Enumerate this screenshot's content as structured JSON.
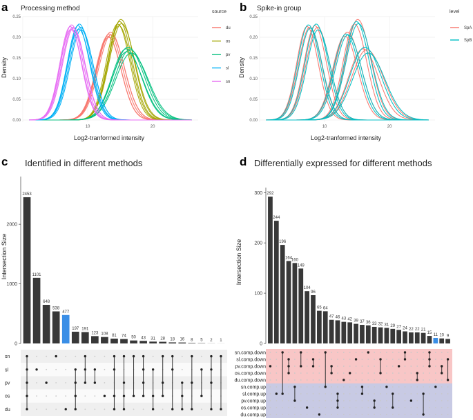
{
  "panel_labels": [
    "a",
    "b",
    "c",
    "d"
  ],
  "chart_data": [
    {
      "id": "a",
      "type": "line",
      "title": "Processing method",
      "xlabel": "Log2-tranformed intensity",
      "ylabel": "Density",
      "xlim": [
        0,
        27
      ],
      "ylim": [
        -0.005,
        0.25
      ],
      "xticks": [
        10,
        20
      ],
      "yticks": [
        0.0,
        0.05,
        0.1,
        0.15,
        0.2,
        0.25
      ],
      "ytick_labels": [
        "0.00",
        "0.05",
        "0.10",
        "0.15",
        "0.20",
        "0.25"
      ],
      "legend_title": "source",
      "legend_position": "right",
      "series": [
        {
          "name": "du",
          "color": "#F8766D",
          "curves": [
            [
              13.1,
              1.85,
              0.203
            ],
            [
              13.3,
              1.9,
              0.208
            ],
            [
              13.5,
              1.95,
              0.212
            ],
            [
              13.2,
              1.8,
              0.2
            ],
            [
              13.6,
              1.92,
              0.206
            ]
          ]
        },
        {
          "name": "os",
          "color": "#A3A500",
          "curves": [
            [
              14.6,
              1.75,
              0.232
            ],
            [
              14.9,
              1.8,
              0.238
            ],
            [
              15.1,
              1.85,
              0.243
            ],
            [
              14.8,
              1.78,
              0.228
            ],
            [
              15.2,
              1.9,
              0.233
            ]
          ]
        },
        {
          "name": "pv",
          "color": "#00BF7D",
          "curves": [
            [
              15.9,
              2.2,
              0.172
            ],
            [
              16.2,
              2.3,
              0.176
            ],
            [
              16.5,
              2.35,
              0.17
            ],
            [
              16.0,
              2.25,
              0.165
            ],
            [
              16.7,
              2.4,
              0.162
            ]
          ]
        },
        {
          "name": "sl",
          "color": "#00B0F6",
          "curves": [
            [
              8.5,
              1.65,
              0.228
            ],
            [
              8.7,
              1.7,
              0.232
            ],
            [
              8.9,
              1.75,
              0.224
            ],
            [
              8.6,
              1.7,
              0.22
            ],
            [
              9.0,
              1.72,
              0.218
            ]
          ]
        },
        {
          "name": "sn",
          "color": "#E76BF3",
          "curves": [
            [
              7.3,
              1.6,
              0.226
            ],
            [
              7.5,
              1.65,
              0.23
            ],
            [
              7.7,
              1.7,
              0.224
            ],
            [
              7.4,
              1.62,
              0.219
            ],
            [
              7.8,
              1.68,
              0.222
            ]
          ]
        }
      ]
    },
    {
      "id": "b",
      "type": "line",
      "title": "Spike-in group",
      "xlabel": "Log2-tranformed intensity",
      "ylabel": "Density",
      "xlim": [
        0,
        27
      ],
      "ylim": [
        -0.005,
        0.25
      ],
      "xticks": [
        10,
        20
      ],
      "yticks": [
        0.0,
        0.05,
        0.1,
        0.15,
        0.2,
        0.25
      ],
      "ytick_labels": [
        "0.00",
        "0.05",
        "0.10",
        "0.15",
        "0.20",
        "0.25"
      ],
      "legend_title": "level",
      "legend_position": "right",
      "series": [
        {
          "name": "SpA",
          "color": "#F8766D",
          "curves": [
            [
              13.1,
              1.85,
              0.203
            ],
            [
              13.5,
              1.95,
              0.212
            ],
            [
              14.6,
              1.75,
              0.232
            ],
            [
              15.1,
              1.85,
              0.243
            ],
            [
              15.9,
              2.2,
              0.172
            ],
            [
              16.5,
              2.35,
              0.17
            ],
            [
              8.5,
              1.65,
              0.228
            ],
            [
              8.9,
              1.75,
              0.224
            ],
            [
              7.3,
              1.6,
              0.226
            ],
            [
              7.7,
              1.7,
              0.224
            ]
          ]
        },
        {
          "name": "SpB",
          "color": "#00BFC4",
          "curves": [
            [
              13.3,
              1.9,
              0.208
            ],
            [
              13.6,
              1.92,
              0.206
            ],
            [
              14.9,
              1.8,
              0.238
            ],
            [
              15.2,
              1.9,
              0.233
            ],
            [
              16.2,
              2.3,
              0.176
            ],
            [
              16.7,
              2.4,
              0.162
            ],
            [
              8.7,
              1.7,
              0.232
            ],
            [
              9.0,
              1.72,
              0.218
            ],
            [
              7.5,
              1.65,
              0.23
            ],
            [
              7.8,
              1.68,
              0.222
            ]
          ]
        }
      ]
    },
    {
      "id": "c",
      "type": "bar",
      "title": "Identified in different methods",
      "ylabel": "Intersection Size",
      "ylim": [
        0,
        2800
      ],
      "yticks": [
        0,
        1000,
        2000
      ],
      "sets": [
        "sn",
        "sl",
        "pv",
        "os",
        "du"
      ],
      "values": [
        2453,
        1101,
        648,
        538,
        477,
        197,
        191,
        123,
        108,
        81,
        74,
        50,
        43,
        31,
        28,
        18,
        16,
        8,
        5,
        2,
        1
      ],
      "highlight_index": 4,
      "highlight_color": "#3A8EE6",
      "bar_color": "#383838",
      "membership": [
        [
          "sn",
          "sl",
          "pv",
          "os",
          "du"
        ],
        [
          "sl"
        ],
        [
          "pv"
        ],
        [
          "sn"
        ],
        [
          "du"
        ],
        [
          "sl",
          "pv",
          "os",
          "du"
        ],
        [
          "sn",
          "sl",
          "pv"
        ],
        [
          "sl",
          "pv"
        ],
        [
          "os"
        ],
        [
          "sn",
          "sl",
          "os",
          "du"
        ],
        [
          "sn",
          "pv",
          "os",
          "du"
        ],
        [
          "sn",
          "os"
        ],
        [
          "sn",
          "sl",
          "pv",
          "os"
        ],
        [
          "sl",
          "os",
          "du"
        ],
        [
          "sn",
          "pv",
          "os"
        ],
        [
          "sn",
          "sl",
          "du"
        ],
        [
          "pv",
          "os",
          "du"
        ],
        [
          "sn",
          "pv",
          "du"
        ],
        [
          "sl",
          "os"
        ],
        [
          "sn",
          "sl",
          "pv",
          "du"
        ],
        [
          "sn",
          "du"
        ]
      ]
    },
    {
      "id": "d",
      "type": "bar",
      "title": "Differentially expressed for different methods",
      "ylabel": "Intersection Size",
      "ylim": [
        0,
        310
      ],
      "yticks": [
        0,
        100,
        200,
        300
      ],
      "sets": [
        "sn.comp.down",
        "sl.comp.down",
        "pv.comp.down",
        "os.comp.down",
        "du.comp.down",
        "sn.comp.up",
        "sl.comp.up",
        "pv.comp.up",
        "os.comp.up",
        "du.comp.up"
      ],
      "down_color": "#F8C6C6",
      "up_color": "#C8CAE4",
      "values": [
        292,
        244,
        196,
        164,
        160,
        149,
        104,
        96,
        65,
        64,
        47,
        46,
        43,
        42,
        39,
        37,
        36,
        33,
        32,
        31,
        29,
        27,
        24,
        22,
        22,
        21,
        15,
        11,
        10,
        9
      ],
      "highlight_index": 27,
      "highlight_color": "#3A8EE6",
      "bar_color": "#383838",
      "membership": [
        [
          2
        ],
        [
          6
        ],
        [
          0,
          6
        ],
        [
          1,
          2,
          3
        ],
        [
          5,
          7
        ],
        [
          0,
          2
        ],
        [
          8
        ],
        [
          1,
          2
        ],
        [
          9
        ],
        [
          0,
          5
        ],
        [
          2,
          3
        ],
        [
          6,
          7,
          8
        ],
        [
          4
        ],
        [
          3
        ],
        [
          1
        ],
        [
          5,
          6
        ],
        [
          0
        ],
        [
          7,
          8
        ],
        [
          1,
          3
        ],
        [
          5
        ],
        [
          6,
          8
        ],
        [
          2
        ],
        [
          0,
          1
        ],
        [
          7
        ],
        [
          3,
          4
        ],
        [
          6,
          9
        ],
        [
          0,
          1,
          2
        ],
        [
          5
        ],
        [
          2,
          3
        ],
        [
          1,
          4
        ]
      ]
    }
  ]
}
